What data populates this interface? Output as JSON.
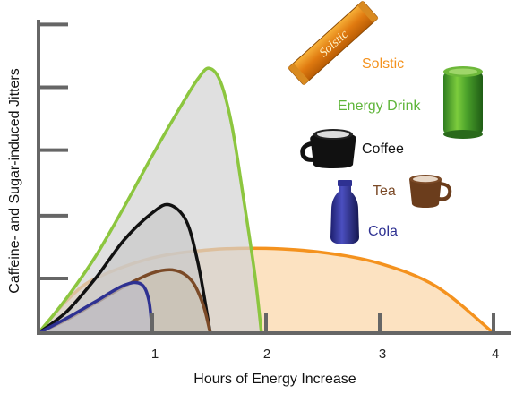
{
  "chart_data": {
    "type": "area",
    "xlabel": "Hours of Energy Increase",
    "ylabel": "Caffeine- and Sugar-induced Jitters",
    "xlim": [
      0,
      4.3
    ],
    "ylim": [
      0,
      10
    ],
    "x_ticks": [
      "1",
      "2",
      "3",
      "4"
    ],
    "grid": false,
    "series": [
      {
        "name": "Solstic",
        "color": "#F4921E",
        "fill": "#FBD5A6",
        "x": [
          0,
          0.25,
          0.5,
          1,
          1.5,
          2,
          2.5,
          3,
          3.5,
          4
        ],
        "y": [
          0,
          1.2,
          2.0,
          2.75,
          3.05,
          3.1,
          2.95,
          2.55,
          1.7,
          0
        ]
      },
      {
        "name": "Energy Drink",
        "color": "#8CC63F",
        "fill": "#D3D3D3",
        "x": [
          0,
          0.25,
          0.5,
          0.75,
          1.0,
          1.25,
          1.4,
          1.5,
          1.6,
          1.7,
          1.8,
          1.9,
          1.96
        ],
        "y": [
          0,
          1.3,
          2.8,
          4.6,
          6.5,
          8.3,
          9.3,
          9.7,
          9.2,
          7.6,
          5.0,
          2.2,
          0
        ]
      },
      {
        "name": "Coffee",
        "color": "#111111",
        "fill": "#C9C9C9",
        "x": [
          0,
          0.25,
          0.5,
          0.75,
          1.0,
          1.15,
          1.3,
          1.4,
          1.47,
          1.51
        ],
        "y": [
          0,
          0.8,
          2.0,
          3.4,
          4.4,
          4.7,
          4.1,
          2.6,
          1.0,
          0
        ]
      },
      {
        "name": "Tea",
        "color": "#7B4A27",
        "fill": "#C9C0B0",
        "x": [
          0,
          0.25,
          0.5,
          0.75,
          1.0,
          1.2,
          1.35,
          1.45,
          1.51
        ],
        "y": [
          0,
          0.5,
          1.1,
          1.7,
          2.2,
          2.3,
          1.9,
          1.0,
          0
        ]
      },
      {
        "name": "Cola",
        "color": "#2E3192",
        "fill": "#BDBDC8",
        "x": [
          0,
          0.25,
          0.5,
          0.75,
          0.9,
          0.97,
          1.0
        ],
        "y": [
          0,
          0.55,
          1.15,
          1.75,
          1.8,
          1.2,
          0
        ]
      }
    ]
  },
  "legend": {
    "solstic": "Solstic",
    "energy_drink": "Energy Drink",
    "coffee": "Coffee",
    "tea": "Tea",
    "cola": "Cola"
  },
  "product_packet_text": "Solstic",
  "icons": [
    "solstic-packet-icon",
    "energy-drink-can-icon",
    "coffee-mug-icon",
    "tea-mug-icon",
    "cola-bottle-icon"
  ],
  "colors": {
    "axis": "#666666",
    "solstic": "#F4921E",
    "energy_drink": "#8CC63F",
    "coffee": "#111111",
    "tea": "#7B4A27",
    "cola": "#2E3192"
  }
}
